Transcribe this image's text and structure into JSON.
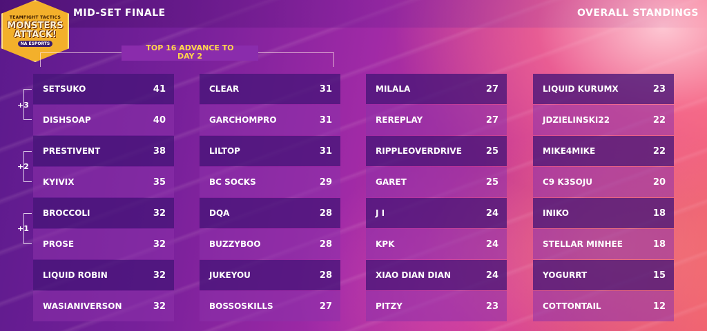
{
  "logo": {
    "small": "TEAMFIGHT TACTICS",
    "main_line1": "MONSTERS",
    "main_line2": "ATTACK!",
    "tag": "NA ESPORTS"
  },
  "header": {
    "left_title": "MID-SET FINALE",
    "right_title": "OVERALL STANDINGS"
  },
  "advance_label_line1": "TOP 16 ADVANCE TO",
  "advance_label_line2": "DAY 2",
  "groups": [
    "+3",
    "+2",
    "+1"
  ],
  "columns": [
    [
      {
        "name": "SETSUKO",
        "score": "41"
      },
      {
        "name": "DISHSOAP",
        "score": "40"
      },
      {
        "name": "PRESTIVENT",
        "score": "38"
      },
      {
        "name": "KYIVIX",
        "score": "35"
      },
      {
        "name": "BROCCOLI",
        "score": "32"
      },
      {
        "name": "PROSE",
        "score": "32"
      },
      {
        "name": "LIQUID ROBIN",
        "score": "32"
      },
      {
        "name": "WASIANIVERSON",
        "score": "32"
      }
    ],
    [
      {
        "name": "CLEAR",
        "score": "31"
      },
      {
        "name": "GARCHOMPRO",
        "score": "31"
      },
      {
        "name": "LILTOP",
        "score": "31"
      },
      {
        "name": "BC SOCKS",
        "score": "29"
      },
      {
        "name": "DQA",
        "score": "28"
      },
      {
        "name": "BUZZYBOO",
        "score": "28"
      },
      {
        "name": "JUKEYOU",
        "score": "28"
      },
      {
        "name": "BOSSOSKILLS",
        "score": "27"
      }
    ],
    [
      {
        "name": "MILALA",
        "score": "27"
      },
      {
        "name": "REREPLAY",
        "score": "27"
      },
      {
        "name": "RIPPLEOVERDRIVE",
        "score": "25"
      },
      {
        "name": "GARET",
        "score": "25"
      },
      {
        "name": "J I",
        "score": "24"
      },
      {
        "name": "KPK",
        "score": "24"
      },
      {
        "name": "XIAO DIAN DIAN",
        "score": "24"
      },
      {
        "name": "PITZY",
        "score": "23"
      }
    ],
    [
      {
        "name": "LIQUID KURUMX",
        "score": "23"
      },
      {
        "name": "JDZIELINSKI22",
        "score": "22"
      },
      {
        "name": "MIKE4MIKE",
        "score": "22"
      },
      {
        "name": "C9 K3SOJU",
        "score": "20"
      },
      {
        "name": "INIKO",
        "score": "18"
      },
      {
        "name": "STELLAR MINHEE",
        "score": "18"
      },
      {
        "name": "YOGURRT",
        "score": "15"
      },
      {
        "name": "COTTONTAIL",
        "score": "12"
      }
    ]
  ]
}
